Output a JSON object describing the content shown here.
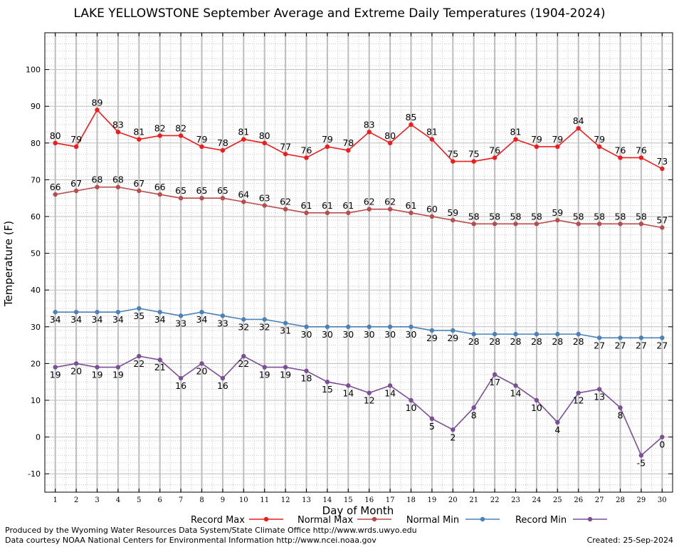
{
  "chart_data": {
    "type": "line",
    "title": "LAKE YELLOWSTONE September Average and Extreme Daily Temperatures (1904-2024)",
    "xlabel": "Day of Month",
    "ylabel": "Temperature (F)",
    "xlim": [
      0.5,
      30.5
    ],
    "ylim": [
      -15,
      110
    ],
    "y_ticks": [
      -10,
      0,
      10,
      20,
      30,
      40,
      50,
      60,
      70,
      80,
      90,
      100
    ],
    "x": [
      1,
      2,
      3,
      4,
      5,
      6,
      7,
      8,
      9,
      10,
      11,
      12,
      13,
      14,
      15,
      16,
      17,
      18,
      19,
      20,
      21,
      22,
      23,
      24,
      25,
      26,
      27,
      28,
      29,
      30
    ],
    "grid": true,
    "legend_position": "bottom",
    "series": [
      {
        "name": "Record Max",
        "color": "#ee1c1c",
        "label_position": "above",
        "values": [
          80,
          79,
          89,
          83,
          81,
          82,
          82,
          79,
          78,
          81,
          80,
          77,
          76,
          79,
          78,
          83,
          80,
          85,
          81,
          75,
          75,
          76,
          81,
          79,
          79,
          84,
          79,
          76,
          76,
          73
        ]
      },
      {
        "name": "Normal Max",
        "color": "#b84c4c",
        "label_position": "above",
        "values": [
          66,
          67,
          68,
          68,
          67,
          66,
          65,
          65,
          65,
          64,
          63,
          62,
          61,
          61,
          61,
          62,
          62,
          61,
          60,
          59,
          58,
          58,
          58,
          58,
          59,
          58,
          58,
          58,
          58,
          57
        ]
      },
      {
        "name": "Normal Min",
        "color": "#4a82b8",
        "label_position": "below",
        "values": [
          34,
          34,
          34,
          34,
          35,
          34,
          33,
          34,
          33,
          32,
          32,
          31,
          30,
          30,
          30,
          30,
          30,
          30,
          29,
          29,
          28,
          28,
          28,
          28,
          28,
          28,
          27,
          27,
          27,
          27
        ]
      },
      {
        "name": "Record Min",
        "color": "#7a4f96",
        "label_position": "below",
        "values": [
          19,
          20,
          19,
          19,
          22,
          21,
          16,
          20,
          16,
          22,
          19,
          19,
          18,
          15,
          14,
          12,
          14,
          10,
          5,
          2,
          8,
          17,
          14,
          10,
          4,
          12,
          13,
          8,
          -5,
          0
        ]
      }
    ]
  },
  "footer": {
    "produced_by": "Produced by the Wyoming Water Resources Data System/State Climate Office http://www.wrds.uwyo.edu",
    "courtesy": "Data courtesy NOAA National Centers for Environmental Information http://www.ncei.noaa.gov",
    "created": "Created:  25-Sep-2024"
  }
}
